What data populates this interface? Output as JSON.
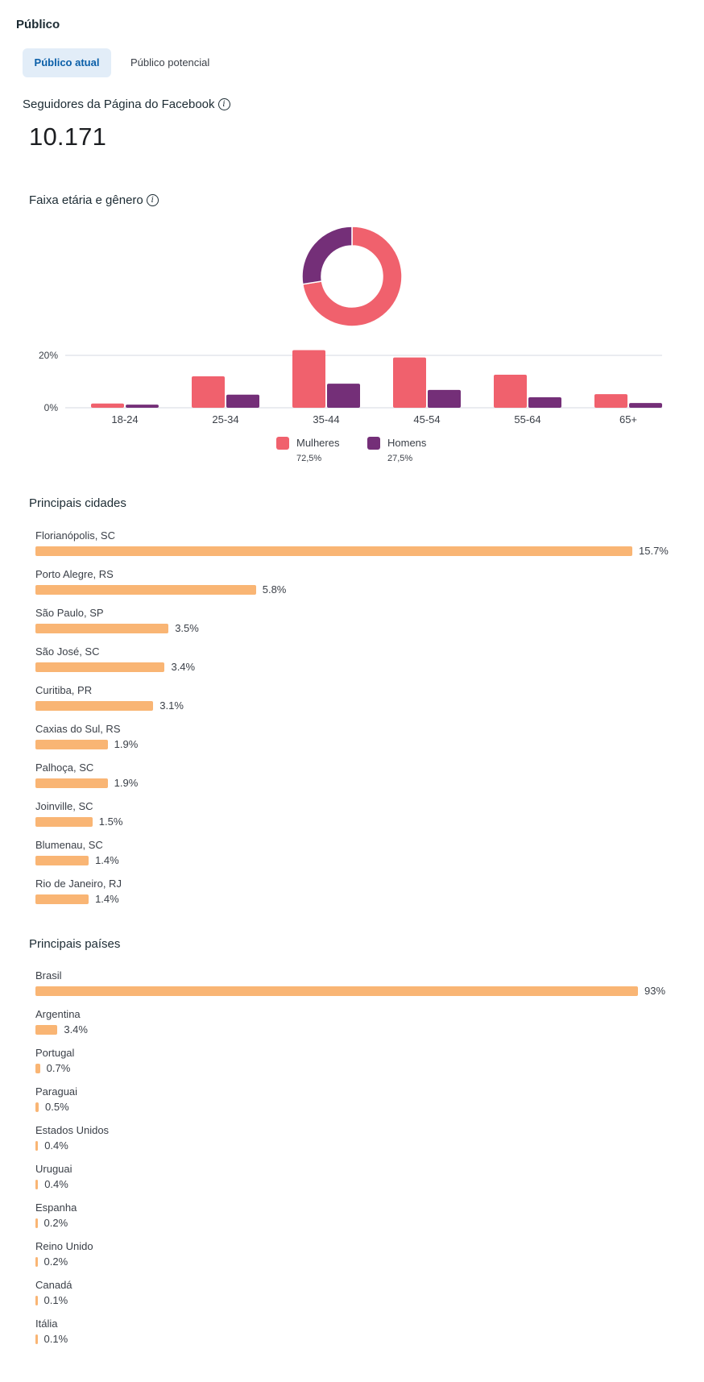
{
  "header": {
    "title": "Público"
  },
  "tabs": [
    {
      "label": "Público atual",
      "active": true
    },
    {
      "label": "Público potencial",
      "active": false
    }
  ],
  "followers": {
    "label": "Seguidores da Página do Facebook",
    "value": "10.171",
    "info_icon": "info-icon"
  },
  "age_gender": {
    "title": "Faixa etária e gênero",
    "info_icon": "info-icon"
  },
  "colors": {
    "women": "#f0616d",
    "men": "#742f78",
    "bar": "#f9b574",
    "grid": "#e4e6eb"
  },
  "chart_data": [
    {
      "type": "pie",
      "title": "Faixa etária e gênero",
      "categories": [
        "Mulheres",
        "Homens"
      ],
      "values": [
        72.5,
        27.5
      ],
      "donut": true
    },
    {
      "type": "bar",
      "title": "Faixa etária e gênero",
      "categories": [
        "18-24",
        "25-34",
        "35-44",
        "45-54",
        "55-64",
        "65+"
      ],
      "series": [
        {
          "name": "Mulheres",
          "total": "72,5%",
          "values": [
            1.6,
            12.0,
            22.0,
            19.2,
            12.6,
            5.2
          ]
        },
        {
          "name": "Homens",
          "total": "27,5%",
          "values": [
            1.2,
            5.0,
            9.2,
            6.8,
            4.0,
            1.8
          ]
        }
      ],
      "yticks": [
        "0%",
        "20%"
      ],
      "ylim": [
        0,
        20
      ],
      "xlabel": "",
      "ylabel": "",
      "grid": true,
      "legend": "bottom-center"
    },
    {
      "type": "bar",
      "orientation": "horizontal",
      "title": "Principais cidades",
      "categories": [
        "Florianópolis, SC",
        "Porto Alegre, RS",
        "São Paulo, SP",
        "São José, SC",
        "Curitiba, PR",
        "Caxias do Sul, RS",
        "Palhoça, SC",
        "Joinville, SC",
        "Blumenau, SC",
        "Rio de Janeiro, RJ"
      ],
      "values": [
        15.7,
        5.8,
        3.5,
        3.4,
        3.1,
        1.9,
        1.9,
        1.5,
        1.4,
        1.4
      ],
      "labels": [
        "15.7%",
        "5.8%",
        "3.5%",
        "3.4%",
        "3.1%",
        "1.9%",
        "1.9%",
        "1.5%",
        "1.4%",
        "1.4%"
      ]
    },
    {
      "type": "bar",
      "orientation": "horizontal",
      "title": "Principais países",
      "categories": [
        "Brasil",
        "Argentina",
        "Portugal",
        "Paraguai",
        "Estados Unidos",
        "Uruguai",
        "Espanha",
        "Reino Unido",
        "Canadá",
        "Itália"
      ],
      "values": [
        93,
        3.4,
        0.7,
        0.5,
        0.4,
        0.4,
        0.2,
        0.2,
        0.1,
        0.1
      ],
      "labels": [
        "93%",
        "3.4%",
        "0.7%",
        "0.5%",
        "0.4%",
        "0.4%",
        "0.2%",
        "0.2%",
        "0.1%",
        "0.1%"
      ]
    }
  ],
  "cities": {
    "title": "Principais cidades"
  },
  "countries": {
    "title": "Principais países"
  }
}
